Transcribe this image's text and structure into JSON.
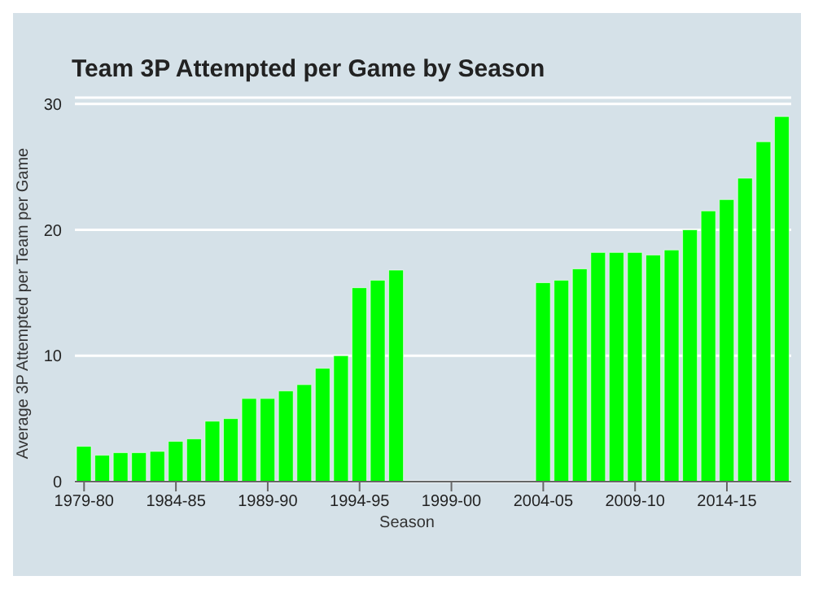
{
  "chart_data": {
    "type": "bar",
    "title": "Team 3P Attempted per Game by Season",
    "xlabel": "Season",
    "ylabel": "Average 3P Attempted per Team per Game",
    "categories": [
      "1979-80",
      null,
      null,
      null,
      null,
      "1984-85",
      null,
      null,
      null,
      null,
      "1989-90",
      null,
      null,
      null,
      null,
      "1994-95",
      null,
      null,
      null,
      null,
      "1999-00",
      null,
      null,
      null,
      null,
      "2004-05",
      null,
      null,
      null,
      null,
      "2009-10",
      null,
      null,
      null,
      null,
      "2014-15",
      null,
      null,
      null
    ],
    "values": [
      2.8,
      2.1,
      2.3,
      2.3,
      2.4,
      3.2,
      3.4,
      4.8,
      5.0,
      6.6,
      6.6,
      7.2,
      7.7,
      9.0,
      10.0,
      15.4,
      16.0,
      16.8,
      null,
      null,
      null,
      null,
      null,
      null,
      null,
      15.8,
      16.0,
      16.9,
      18.2,
      18.2,
      18.2,
      18.0,
      18.4,
      20.0,
      21.5,
      22.4,
      24.1,
      27.0,
      29.0
    ],
    "color": "#00ff00",
    "ylim": [
      0,
      30.5
    ],
    "yticks": [
      0,
      10,
      20,
      30
    ],
    "grid": "y"
  }
}
